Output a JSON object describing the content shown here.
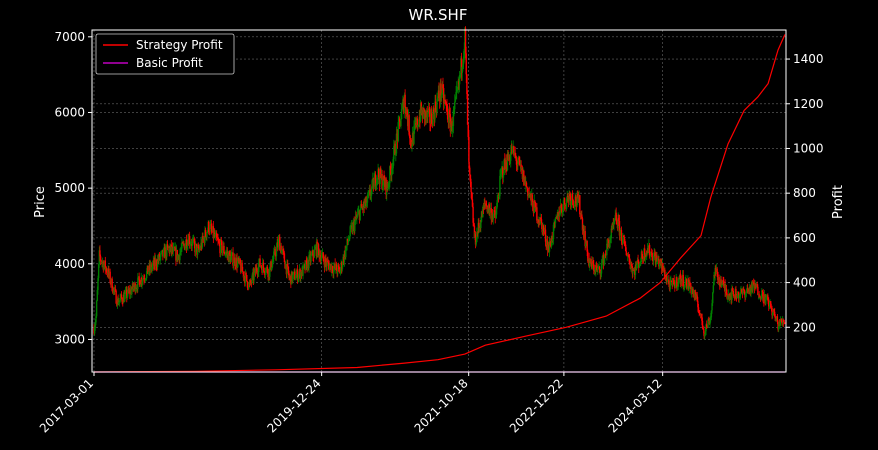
{
  "chart_data": {
    "type": "candlestick-with-line",
    "title": "WR.SHF",
    "ylabel_left": "Price",
    "ylabel_right": "Profit",
    "xlabel": "",
    "x_tick_labels": [
      "2017-03-01",
      "2019-12-24",
      "2021-10-18",
      "2022-12-22",
      "2024-03-12"
    ],
    "x_date_range": [
      "2017-02-20",
      "2025-09-20"
    ],
    "y_left_ticks": [
      3000,
      4000,
      5000,
      6000,
      7000
    ],
    "y_left_range": [
      2570,
      7090
    ],
    "y_right_ticks": [
      200,
      400,
      600,
      800,
      1000,
      1200,
      1400
    ],
    "y_right_range": [
      0,
      1530
    ],
    "grid": true,
    "legend_position": "top-left",
    "colors": {
      "up": "#008000",
      "down": "#ff0000",
      "strategy": "#ff0000",
      "basic": "#bf00bf",
      "background": "#000000",
      "grid": "#808080"
    },
    "legend": [
      {
        "label": "Strategy Profit",
        "color": "#ff0000"
      },
      {
        "label": "Basic Profit",
        "color": "#bf00bf"
      }
    ],
    "price_close_path": [
      [
        "2017-03-01",
        3150
      ],
      [
        "2017-03-10",
        3300
      ],
      [
        "2017-03-25",
        4100
      ],
      [
        "2017-05-01",
        3900
      ],
      [
        "2017-06-15",
        3500
      ],
      [
        "2017-08-01",
        3600
      ],
      [
        "2017-10-01",
        3800
      ],
      [
        "2017-12-01",
        4000
      ],
      [
        "2018-02-01",
        4200
      ],
      [
        "2018-03-15",
        4100
      ],
      [
        "2018-05-01",
        4350
      ],
      [
        "2018-06-15",
        4150
      ],
      [
        "2018-08-01",
        4500
      ],
      [
        "2018-09-15",
        4250
      ],
      [
        "2018-11-01",
        4100
      ],
      [
        "2018-12-15",
        4000
      ],
      [
        "2019-02-01",
        3700
      ],
      [
        "2019-03-15",
        4000
      ],
      [
        "2019-05-01",
        3900
      ],
      [
        "2019-06-15",
        4300
      ],
      [
        "2019-08-01",
        3800
      ],
      [
        "2019-10-01",
        3900
      ],
      [
        "2019-12-01",
        4200
      ],
      [
        "2020-01-15",
        4000
      ],
      [
        "2020-03-15",
        3900
      ],
      [
        "2020-05-01",
        4400
      ],
      [
        "2020-06-15",
        4700
      ],
      [
        "2020-07-15",
        4800
      ],
      [
        "2020-09-01",
        5200
      ],
      [
        "2020-10-15",
        5000
      ],
      [
        "2020-12-01",
        5700
      ],
      [
        "2021-01-01",
        6200
      ],
      [
        "2021-02-01",
        5600
      ],
      [
        "2021-03-15",
        6000
      ],
      [
        "2021-05-01",
        5900
      ],
      [
        "2021-06-15",
        6300
      ],
      [
        "2021-08-01",
        5800
      ],
      [
        "2021-09-01",
        6300
      ],
      [
        "2021-10-01",
        7000
      ],
      [
        "2021-10-20",
        5200
      ],
      [
        "2021-11-15",
        4300
      ],
      [
        "2022-01-01",
        4800
      ],
      [
        "2022-02-15",
        4600
      ],
      [
        "2022-03-15",
        5200
      ],
      [
        "2022-05-01",
        5500
      ],
      [
        "2022-06-15",
        5200
      ],
      [
        "2022-08-01",
        4800
      ],
      [
        "2022-09-15",
        4500
      ],
      [
        "2022-10-15",
        4200
      ],
      [
        "2022-12-01",
        4700
      ],
      [
        "2023-01-15",
        4900
      ],
      [
        "2023-03-01",
        4800
      ],
      [
        "2023-04-15",
        4000
      ],
      [
        "2023-06-01",
        3900
      ],
      [
        "2023-07-15",
        4300
      ],
      [
        "2023-08-15",
        4600
      ],
      [
        "2023-09-15",
        4300
      ],
      [
        "2023-11-01",
        3900
      ],
      [
        "2024-01-01",
        4200
      ],
      [
        "2024-03-01",
        4000
      ],
      [
        "2024-04-15",
        3700
      ],
      [
        "2024-06-01",
        3800
      ],
      [
        "2024-07-15",
        3700
      ],
      [
        "2024-08-15",
        3500
      ],
      [
        "2024-09-15",
        3100
      ],
      [
        "2024-10-15",
        3300
      ],
      [
        "2024-11-01",
        3900
      ],
      [
        "2025-01-01",
        3600
      ],
      [
        "2025-03-01",
        3600
      ],
      [
        "2025-05-01",
        3700
      ],
      [
        "2025-07-01",
        3500
      ],
      [
        "2025-08-15",
        3200
      ],
      [
        "2025-09-15",
        3250
      ]
    ],
    "strategy_profit": [
      [
        "2017-03-01",
        0
      ],
      [
        "2018-06-01",
        3
      ],
      [
        "2019-06-01",
        10
      ],
      [
        "2020-06-01",
        20
      ],
      [
        "2021-01-01",
        40
      ],
      [
        "2021-06-01",
        55
      ],
      [
        "2021-10-01",
        80
      ],
      [
        "2022-01-01",
        120
      ],
      [
        "2022-07-01",
        160
      ],
      [
        "2023-01-01",
        200
      ],
      [
        "2023-07-01",
        250
      ],
      [
        "2023-12-01",
        330
      ],
      [
        "2024-03-01",
        400
      ],
      [
        "2024-06-01",
        510
      ],
      [
        "2024-09-01",
        610
      ],
      [
        "2024-10-15",
        780
      ],
      [
        "2025-01-01",
        1020
      ],
      [
        "2025-03-15",
        1170
      ],
      [
        "2025-05-15",
        1230
      ],
      [
        "2025-07-01",
        1290
      ],
      [
        "2025-08-15",
        1440
      ],
      [
        "2025-09-15",
        1510
      ]
    ],
    "basic_profit": [
      [
        "2017-03-01",
        0
      ],
      [
        "2025-09-15",
        0
      ]
    ]
  }
}
